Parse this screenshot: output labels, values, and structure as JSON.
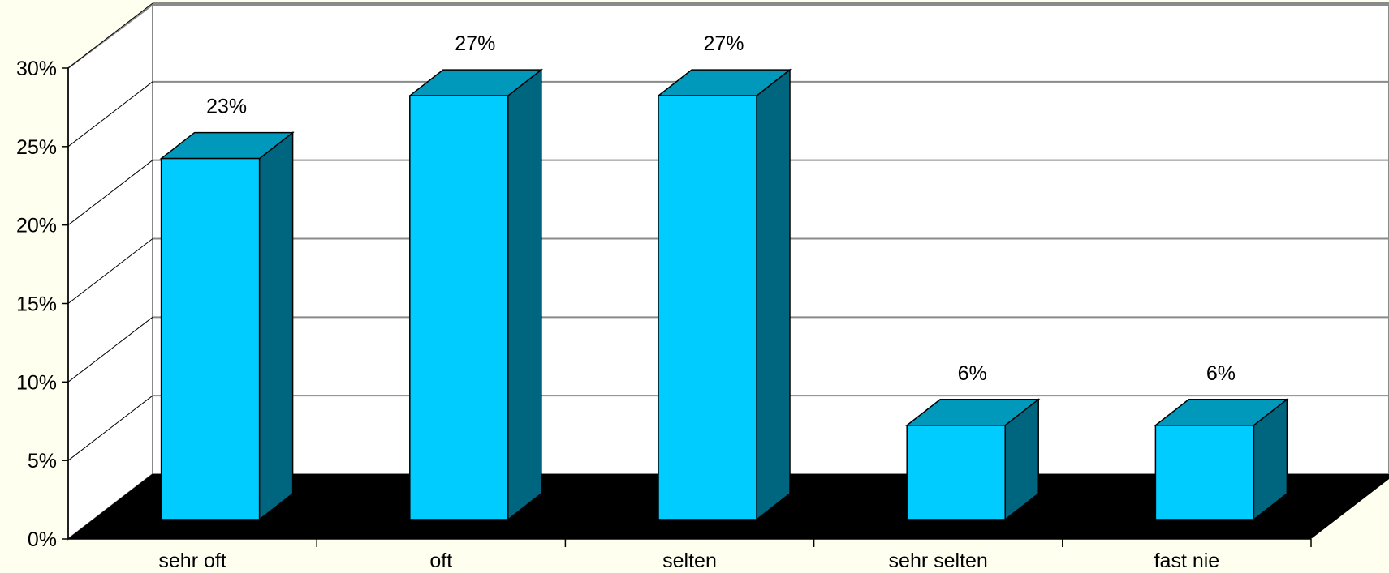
{
  "chart_data": {
    "type": "bar",
    "style": "3d-column",
    "categories": [
      "sehr oft",
      "oft",
      "selten",
      "sehr selten",
      "fast nie"
    ],
    "values": [
      23,
      27,
      27,
      6,
      6
    ],
    "data_labels": [
      "23%",
      "27%",
      "27%",
      "6%",
      "6%"
    ],
    "y_ticks": [
      "0%",
      "5%",
      "10%",
      "15%",
      "20%",
      "25%",
      "30%"
    ],
    "ylim": [
      0,
      30
    ],
    "ystep": 5,
    "grid": true,
    "legend": "none",
    "colors": {
      "bar_front": "#00ccff",
      "bar_top": "#0099bb",
      "bar_side": "#006680",
      "floor": "#000000",
      "background": "#fffff0",
      "wall": "#ffffff",
      "gridline": "#8a8a8a"
    }
  }
}
